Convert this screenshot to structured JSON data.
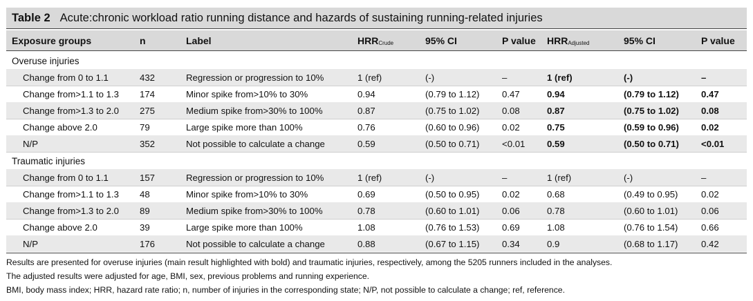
{
  "title": {
    "label": "Table 2",
    "text": "Acute:chronic workload ratio running distance and hazards of sustaining running-related injuries"
  },
  "headers": {
    "group": "Exposure groups",
    "n": "n",
    "label": "Label",
    "hrr_crude_main": "HRR",
    "hrr_crude_sub": "Crude",
    "ci_crude": "95% CI",
    "p_crude": "P value",
    "hrr_adj_main": "HRR",
    "hrr_adj_sub": "Adjusted",
    "ci_adj": "95% CI",
    "p_adj": "P value"
  },
  "sections": [
    {
      "name": "Overuse injuries",
      "rows": [
        [
          "Change from 0 to 1.1",
          "432",
          "Regression or progression to 10%",
          "1 (ref)",
          "(-)",
          "–",
          "1 (ref)",
          "(-)",
          "–"
        ],
        [
          "Change from>1.1 to 1.3",
          "174",
          "Minor spike from>10% to 30%",
          "0.94",
          "(0.79 to 1.12)",
          "0.47",
          "0.94",
          "(0.79 to 1.12)",
          "0.47"
        ],
        [
          "Change from>1.3 to 2.0",
          "275",
          "Medium spike from>30% to 100%",
          "0.87",
          "(0.75 to 1.02)",
          "0.08",
          "0.87",
          "(0.75 to 1.02)",
          "0.08"
        ],
        [
          "Change above 2.0",
          "79",
          "Large spike more than 100%",
          "0.76",
          "(0.60 to 0.96)",
          "0.02",
          "0.75",
          "(0.59 to 0.96)",
          "0.02"
        ],
        [
          "N/P",
          "352",
          "Not possible to calculate a change",
          "0.59",
          "(0.50 to 0.71)",
          "<0.01",
          "0.59",
          "(0.50 to 0.71)",
          "<0.01"
        ]
      ]
    },
    {
      "name": "Traumatic injuries",
      "rows": [
        [
          "Change from 0 to 1.1",
          "157",
          "Regression or progression to 10%",
          "1 (ref)",
          "(-)",
          "–",
          "1 (ref)",
          "(-)",
          "–"
        ],
        [
          "Change from>1.1 to 1.3",
          "48",
          "Minor spike from>10% to 30%",
          "0.69",
          "(0.50 to 0.95)",
          "0.02",
          "0.68",
          "(0.49 to 0.95)",
          "0.02"
        ],
        [
          "Change from>1.3 to 2.0",
          "89",
          "Medium spike from>30% to 100%",
          "0.78",
          "(0.60 to 1.01)",
          "0.06",
          "0.78",
          "(0.60 to 1.01)",
          "0.06"
        ],
        [
          "Change above 2.0",
          "39",
          "Large spike more than 100%",
          "1.08",
          "(0.76 to 1.53)",
          "0.69",
          "1.08",
          "(0.76 to 1.54)",
          "0.66"
        ],
        [
          "N/P",
          "176",
          "Not possible to calculate a change",
          "0.88",
          "(0.67 to 1.15)",
          "0.34",
          "0.9",
          "(0.68 to 1.17)",
          "0.42"
        ]
      ]
    }
  ],
  "footnotes": [
    "Results are presented for overuse injuries (main result highlighted with bold) and traumatic injuries, respectively, among the 5205 runners included in the analyses.",
    "The adjusted results were adjusted for age, BMI, sex, previous problems and running experience.",
    "BMI, body mass index; HRR, hazard rate ratio; n, number of injuries in the corresponding state; N/P, not possible to calculate a change; ref, reference."
  ]
}
